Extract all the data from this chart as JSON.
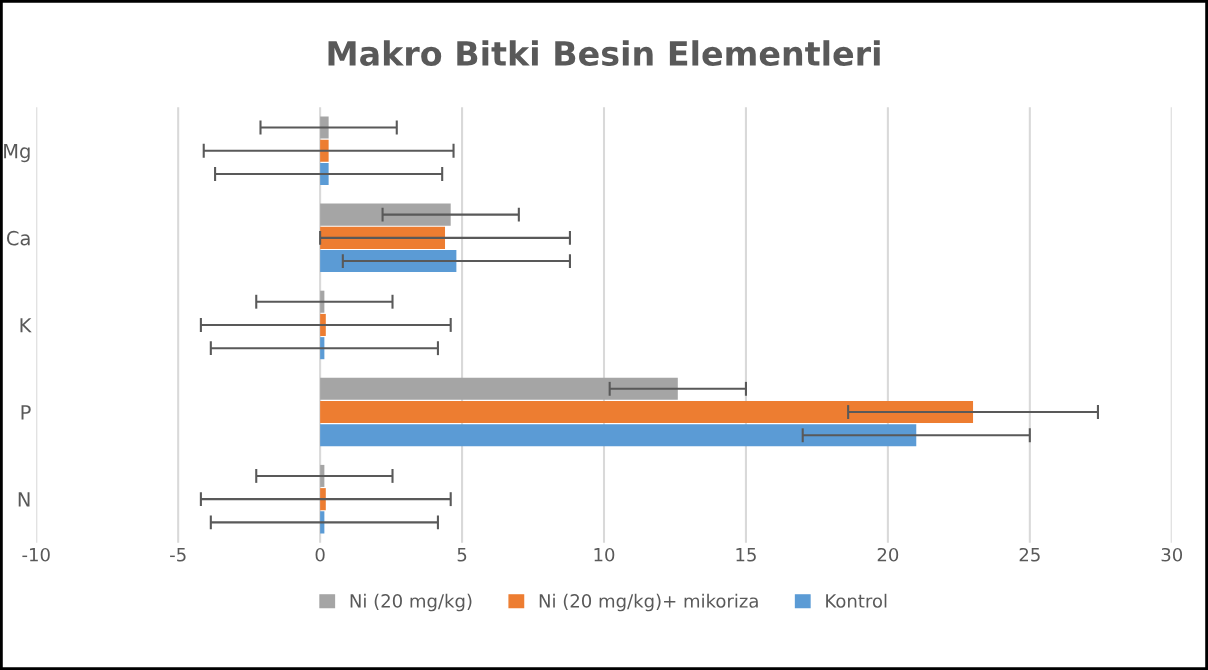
{
  "chart_data": {
    "type": "bar",
    "orientation": "horizontal",
    "title": "Makro Bitki Besin Elementleri",
    "categories": [
      "Mg",
      "Ca",
      "K",
      "P",
      "N"
    ],
    "series": [
      {
        "name": "Ni (20 mg/kg)",
        "color": "#a5a5a5",
        "values": [
          0.3,
          4.6,
          0.15,
          12.6,
          0.15
        ],
        "errors": [
          2.4,
          2.4,
          2.4,
          2.4,
          2.4
        ]
      },
      {
        "name": "Ni (20 mg/kg)+ mikoriza",
        "color": "#ed7d31",
        "values": [
          0.3,
          4.4,
          0.2,
          23.0,
          0.2
        ],
        "errors": [
          4.4,
          4.4,
          4.4,
          4.4,
          4.4
        ]
      },
      {
        "name": "Kontrol",
        "color": "#5b9bd5",
        "values": [
          0.3,
          4.8,
          0.15,
          21.0,
          0.15
        ],
        "errors": [
          4.0,
          4.0,
          4.0,
          4.0,
          4.0
        ]
      }
    ],
    "xlim": [
      -10,
      30
    ],
    "xticks": [
      -10,
      -5,
      0,
      5,
      10,
      15,
      20,
      25,
      30
    ],
    "grid": "x",
    "legend": "bottom"
  }
}
